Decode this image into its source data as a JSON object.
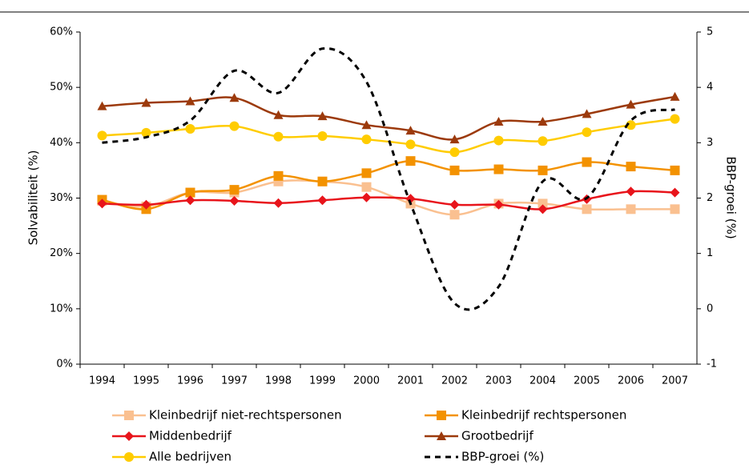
{
  "chart_data": {
    "type": "line",
    "categories": [
      "1994",
      "1995",
      "1996",
      "1997",
      "1998",
      "1999",
      "2000",
      "2001",
      "2002",
      "2003",
      "2004",
      "2005",
      "2006",
      "2007"
    ],
    "y_label": "Solvabiliteit (%)",
    "y2_label": "BBP-groei (%)",
    "ylim": [
      0,
      60
    ],
    "yticks": [
      {
        "value": 0,
        "label": "0%"
      },
      {
        "value": 10,
        "label": "10%"
      },
      {
        "value": 20,
        "label": "20%"
      },
      {
        "value": 30,
        "label": "30%"
      },
      {
        "value": 40,
        "label": "40%"
      },
      {
        "value": 50,
        "label": "50%"
      },
      {
        "value": 60,
        "label": "60%"
      }
    ],
    "y2lim": [
      -1,
      5
    ],
    "y2ticks": [
      -1,
      0,
      1,
      2,
      3,
      4,
      5
    ],
    "series": [
      {
        "name": "Kleinbedrijf niet-rechtspersonen",
        "color": "#fac090",
        "marker": "square",
        "values": [
          29.5,
          28.5,
          31,
          31,
          33,
          33,
          32,
          29,
          27,
          29,
          29,
          28,
          28,
          28
        ]
      },
      {
        "name": "Kleinbedrijf rechtspersonen",
        "color": "#f39200",
        "marker": "square",
        "values": [
          29.7,
          28,
          31,
          31.5,
          34,
          33,
          34.5,
          36.7,
          35,
          35.2,
          35,
          36.5,
          35.7,
          35
        ]
      },
      {
        "name": "Middenbedrijf",
        "color": "#e8141b",
        "marker": "diamond",
        "values": [
          29,
          28.8,
          29.6,
          29.5,
          29.1,
          29.6,
          30.1,
          29.9,
          28.8,
          28.8,
          28,
          29.8,
          31.2,
          31
        ]
      },
      {
        "name": "Grootbedrijf",
        "color": "#9c3a0c",
        "marker": "triangle",
        "values": [
          46.6,
          47.2,
          47.5,
          48.1,
          45,
          44.8,
          43.2,
          42.2,
          40.6,
          43.8,
          43.8,
          45.2,
          46.9,
          48.3
        ]
      },
      {
        "name": "Alle bedrijven",
        "color": "#ffcc00",
        "marker": "circle",
        "values": [
          41.3,
          41.8,
          42.5,
          43,
          41.1,
          41.2,
          40.6,
          39.7,
          38.3,
          40.4,
          40.3,
          41.9,
          43.2,
          44.3
        ]
      },
      {
        "name": "BBP-groei (%)",
        "color": "#000000",
        "dashed": true,
        "axis": "y2",
        "values": [
          3.0,
          3.1,
          3.4,
          4.3,
          3.9,
          4.7,
          4.1,
          1.9,
          0.1,
          0.4,
          2.3,
          2.0,
          3.4,
          3.6
        ]
      }
    ]
  }
}
